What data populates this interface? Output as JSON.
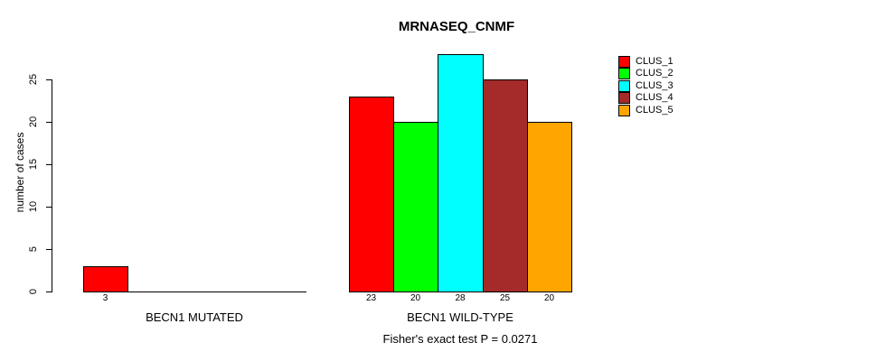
{
  "chart_data": {
    "type": "bar",
    "title": "MRNASEQ_CNMF",
    "xlabel": "",
    "ylabel": "number of cases",
    "ylim": [
      0,
      28
    ],
    "yticks": [
      0,
      5,
      10,
      15,
      20,
      25
    ],
    "grid": false,
    "series_names": [
      "CLUS_1",
      "CLUS_2",
      "CLUS_3",
      "CLUS_4",
      "CLUS_5"
    ],
    "series_colors": [
      "#FF0000",
      "#00FF00",
      "#00FFFF",
      "#A52A2A",
      "#FFA500"
    ],
    "groups": [
      {
        "label": "BECN1 MUTATED",
        "values": [
          3,
          0,
          0,
          0,
          0
        ],
        "value_labels": [
          "3",
          "",
          "",
          "",
          ""
        ]
      },
      {
        "label": "BECN1 WILD-TYPE",
        "values": [
          23,
          20,
          28,
          25,
          20
        ],
        "value_labels": [
          "23",
          "20",
          "28",
          "25",
          "20"
        ]
      }
    ],
    "annotation": "Fisher's exact test P = 0.0271",
    "legend": {
      "position": "top-right",
      "entries": [
        "CLUS_1",
        "CLUS_2",
        "CLUS_3",
        "CLUS_4",
        "CLUS_5"
      ]
    }
  }
}
